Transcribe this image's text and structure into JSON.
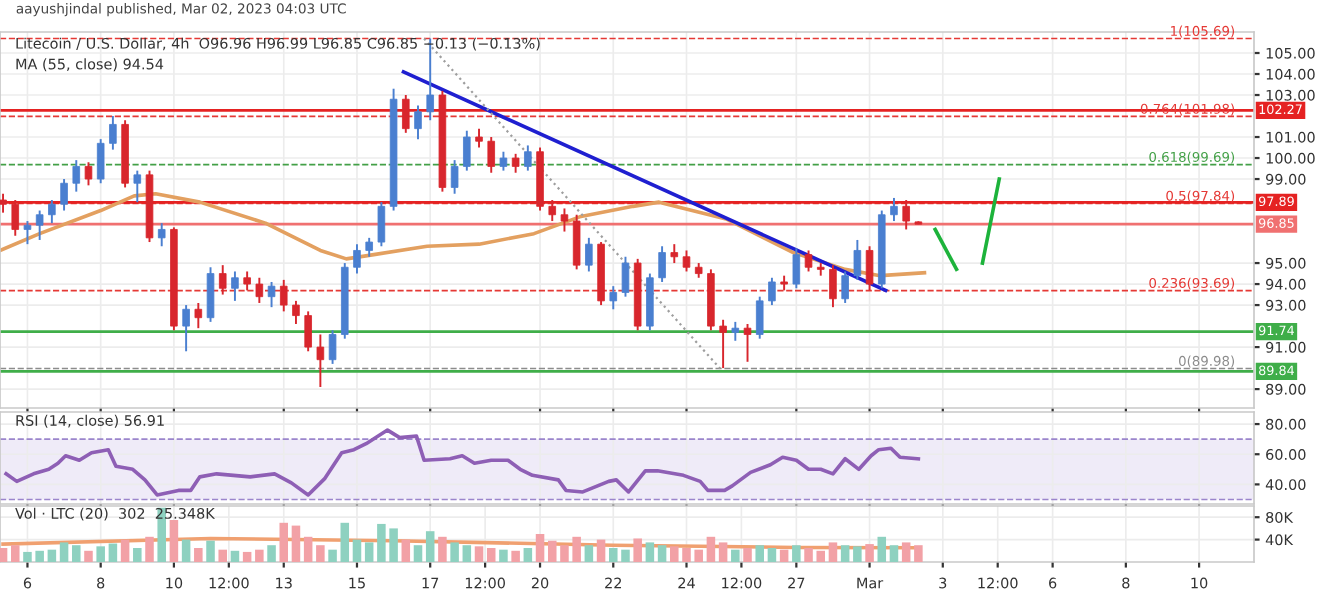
{
  "chart_data": [
    {
      "type": "candlestick",
      "title": "Litecoin / U.S. Dollar, 4h  O96.96 H96.99 L96.85 C96.85 −0.13 (−0.13%)",
      "subtitle": "MA (55, close) 94.54",
      "annotations": [
        "aayushjindal published, Mar 02, 2023 04:03 UTC"
      ],
      "x": [
        "2023-02-05T08:00",
        "2023-02-05T16:00",
        "2023-02-06T00:00",
        "2023-02-06T08:00",
        "2023-02-06T16:00",
        "2023-02-07T00:00",
        "2023-02-07T08:00",
        "2023-02-07T16:00",
        "2023-02-08T00:00",
        "2023-02-08T08:00",
        "2023-02-08T16:00",
        "2023-02-09T00:00",
        "2023-02-09T08:00",
        "2023-02-09T16:00",
        "2023-02-10T00:00",
        "2023-02-10T08:00",
        "2023-02-10T16:00",
        "2023-02-11T00:00",
        "2023-02-11T08:00",
        "2023-02-11T16:00",
        "2023-02-12T00:00",
        "2023-02-12T08:00",
        "2023-02-12T16:00",
        "2023-02-13T00:00",
        "2023-02-13T08:00",
        "2023-02-13T16:00",
        "2023-02-14T00:00",
        "2023-02-14T08:00",
        "2023-02-14T16:00",
        "2023-02-15T00:00",
        "2023-02-15T08:00",
        "2023-02-15T16:00",
        "2023-02-16T00:00",
        "2023-02-16T08:00",
        "2023-02-16T16:00",
        "2023-02-17T00:00",
        "2023-02-17T08:00",
        "2023-02-17T16:00",
        "2023-02-18T00:00",
        "2023-02-18T08:00",
        "2023-02-18T16:00",
        "2023-02-19T00:00",
        "2023-02-19T08:00",
        "2023-02-19T16:00",
        "2023-02-20T00:00",
        "2023-02-20T08:00",
        "2023-02-20T16:00",
        "2023-02-21T00:00",
        "2023-02-21T08:00",
        "2023-02-21T16:00",
        "2023-02-22T00:00",
        "2023-02-22T08:00",
        "2023-02-22T16:00",
        "2023-02-23T00:00",
        "2023-02-23T08:00",
        "2023-02-23T16:00",
        "2023-02-24T00:00",
        "2023-02-24T08:00",
        "2023-02-24T16:00",
        "2023-02-25T00:00",
        "2023-02-25T08:00",
        "2023-02-25T16:00",
        "2023-02-26T00:00",
        "2023-02-26T08:00",
        "2023-02-26T16:00",
        "2023-02-27T00:00",
        "2023-02-27T08:00",
        "2023-02-27T16:00",
        "2023-02-28T00:00",
        "2023-02-28T08:00",
        "2023-02-28T16:00",
        "2023-03-01T00:00",
        "2023-03-01T08:00",
        "2023-03-01T16:00",
        "2023-03-02T00:00",
        "2023-03-02T08:00"
      ],
      "ohlc": [
        [
          98.0,
          98.3,
          97.4,
          97.8
        ],
        [
          97.8,
          98.0,
          96.3,
          96.6
        ],
        [
          96.6,
          97.0,
          95.9,
          96.8
        ],
        [
          96.8,
          97.5,
          96.1,
          97.3
        ],
        [
          97.3,
          98.0,
          96.9,
          97.8
        ],
        [
          97.8,
          99.0,
          97.5,
          98.8
        ],
        [
          98.8,
          99.9,
          98.4,
          99.6
        ],
        [
          99.6,
          99.8,
          98.7,
          99.0
        ],
        [
          99.0,
          100.9,
          98.8,
          100.7
        ],
        [
          100.7,
          102.0,
          100.4,
          101.6
        ],
        [
          101.6,
          101.8,
          98.6,
          98.8
        ],
        [
          98.8,
          99.4,
          97.9,
          99.2
        ],
        [
          99.2,
          99.4,
          96.0,
          96.2
        ],
        [
          96.2,
          96.9,
          95.8,
          96.6
        ],
        [
          96.6,
          96.7,
          91.8,
          92.0
        ],
        [
          92.0,
          93.0,
          90.8,
          92.8
        ],
        [
          92.8,
          93.1,
          91.9,
          92.4
        ],
        [
          92.4,
          94.8,
          92.2,
          94.5
        ],
        [
          94.5,
          94.9,
          93.5,
          93.8
        ],
        [
          93.8,
          94.6,
          93.2,
          94.3
        ],
        [
          94.3,
          94.6,
          93.7,
          94.0
        ],
        [
          94.0,
          94.3,
          93.1,
          93.4
        ],
        [
          93.4,
          94.1,
          92.9,
          93.9
        ],
        [
          93.9,
          94.2,
          92.7,
          93.0
        ],
        [
          93.0,
          93.2,
          92.1,
          92.5
        ],
        [
          92.5,
          92.7,
          90.8,
          91.0
        ],
        [
          91.0,
          91.6,
          89.1,
          90.4
        ],
        [
          90.4,
          91.8,
          90.2,
          91.6
        ],
        [
          91.6,
          95.0,
          91.4,
          94.8
        ],
        [
          94.8,
          95.9,
          94.5,
          95.6
        ],
        [
          95.6,
          96.2,
          95.3,
          96.0
        ],
        [
          96.0,
          97.9,
          95.8,
          97.7
        ],
        [
          97.7,
          103.3,
          97.5,
          102.8
        ],
        [
          102.8,
          103.0,
          101.2,
          101.4
        ],
        [
          101.4,
          102.5,
          100.9,
          102.2
        ],
        [
          102.2,
          105.69,
          101.8,
          103.0
        ],
        [
          103.0,
          103.2,
          98.4,
          98.6
        ],
        [
          98.6,
          99.9,
          98.3,
          99.6
        ],
        [
          99.6,
          101.3,
          99.4,
          101.0
        ],
        [
          101.0,
          101.4,
          100.5,
          100.8
        ],
        [
          100.8,
          101.0,
          99.3,
          99.6
        ],
        [
          99.6,
          100.3,
          99.4,
          100.0
        ],
        [
          100.0,
          100.2,
          99.3,
          99.6
        ],
        [
          99.6,
          100.6,
          99.4,
          100.3
        ],
        [
          100.3,
          100.5,
          97.5,
          97.7
        ],
        [
          97.7,
          98.0,
          97.0,
          97.3
        ],
        [
          97.3,
          97.6,
          96.5,
          97.0
        ],
        [
          97.0,
          97.3,
          94.7,
          94.9
        ],
        [
          94.9,
          96.2,
          94.6,
          95.9
        ],
        [
          95.9,
          96.0,
          93.0,
          93.2
        ],
        [
          93.2,
          93.9,
          92.8,
          93.6
        ],
        [
          93.6,
          95.3,
          93.4,
          95.0
        ],
        [
          95.0,
          95.2,
          91.8,
          92.0
        ],
        [
          92.0,
          94.5,
          91.8,
          94.3
        ],
        [
          94.3,
          95.8,
          94.1,
          95.5
        ],
        [
          95.5,
          95.9,
          95.0,
          95.3
        ],
        [
          95.3,
          95.6,
          94.6,
          94.8
        ],
        [
          94.8,
          95.0,
          94.3,
          94.5
        ],
        [
          94.5,
          94.7,
          91.8,
          92.0
        ],
        [
          92.0,
          92.3,
          90.0,
          91.7
        ],
        [
          91.7,
          92.2,
          91.3,
          91.9
        ],
        [
          91.9,
          92.1,
          90.3,
          91.6
        ],
        [
          91.6,
          93.4,
          91.4,
          93.2
        ],
        [
          93.2,
          94.3,
          93.0,
          94.1
        ],
        [
          94.1,
          94.4,
          93.7,
          94.0
        ],
        [
          94.0,
          95.7,
          93.8,
          95.4
        ],
        [
          95.4,
          95.6,
          94.6,
          94.8
        ],
        [
          94.8,
          95.0,
          94.4,
          94.7
        ],
        [
          94.7,
          94.9,
          92.9,
          93.3
        ],
        [
          93.3,
          94.6,
          93.1,
          94.4
        ],
        [
          94.4,
          96.1,
          94.2,
          95.6
        ],
        [
          95.6,
          95.8,
          93.7,
          94.0
        ],
        [
          94.0,
          97.5,
          93.8,
          97.3
        ],
        [
          97.3,
          98.1,
          97.0,
          97.7
        ],
        [
          97.7,
          98.0,
          96.6,
          97.0
        ],
        [
          96.96,
          96.99,
          96.85,
          96.85
        ]
      ],
      "colors": [
        "#d8262d",
        "#d8262d",
        "#4a7fd0",
        "#4a7fd0",
        "#4a7fd0",
        "#4a7fd0",
        "#4a7fd0",
        "#d8262d",
        "#4a7fd0",
        "#4a7fd0",
        "#d8262d",
        "#4a7fd0",
        "#d8262d",
        "#4a7fd0",
        "#d8262d",
        "#4a7fd0",
        "#d8262d",
        "#4a7fd0",
        "#d8262d",
        "#4a7fd0",
        "#d8262d",
        "#d8262d",
        "#4a7fd0",
        "#d8262d",
        "#d8262d",
        "#d8262d",
        "#d8262d",
        "#4a7fd0",
        "#4a7fd0",
        "#4a7fd0",
        "#4a7fd0",
        "#4a7fd0",
        "#4a7fd0",
        "#d8262d",
        "#4a7fd0",
        "#4a7fd0",
        "#d8262d",
        "#4a7fd0",
        "#4a7fd0",
        "#d8262d",
        "#d8262d",
        "#4a7fd0",
        "#d8262d",
        "#4a7fd0",
        "#d8262d",
        "#d8262d",
        "#d8262d",
        "#d8262d",
        "#4a7fd0",
        "#d8262d",
        "#4a7fd0",
        "#4a7fd0",
        "#d8262d",
        "#4a7fd0",
        "#4a7fd0",
        "#d8262d",
        "#d8262d",
        "#d8262d",
        "#d8262d",
        "#d8262d",
        "#4a7fd0",
        "#d8262d",
        "#4a7fd0",
        "#4a7fd0",
        "#d8262d",
        "#4a7fd0",
        "#d8262d",
        "#d8262d",
        "#d8262d",
        "#4a7fd0",
        "#4a7fd0",
        "#d8262d",
        "#4a7fd0",
        "#4a7fd0",
        "#d8262d",
        "#d8262d"
      ],
      "series": [
        {
          "type": "line",
          "color": "#e3a060",
          "line_style": "solid",
          "x": [
            "2023-02-05T06:00",
            "2023-02-06T08:00",
            "2023-02-08T00:00",
            "2023-02-08T22:00",
            "2023-02-09T12:00",
            "2023-02-10T17:00",
            "2023-02-12T12:00",
            "2023-02-14T00:00",
            "2023-02-14T17:00",
            "2023-02-15T11:00",
            "2023-02-16T22:00",
            "2023-02-18T08:00",
            "2023-02-19T20:00",
            "2023-02-21T02:00",
            "2023-02-22T13:00",
            "2023-02-23T06:00",
            "2023-02-25T02:00",
            "2023-02-26T22:00",
            "2023-02-28T08:00",
            "2023-03-01T07:00",
            "2023-03-02T12:00"
          ],
          "values": [
            95.6,
            96.4,
            97.5,
            98.2,
            98.3,
            97.9,
            96.9,
            95.6,
            95.2,
            95.4,
            95.8,
            95.9,
            96.4,
            97.2,
            97.7,
            97.9,
            97.1,
            95.5,
            94.7,
            94.4,
            94.54
          ]
        },
        {
          "type": "line",
          "color": "#1f1fd0",
          "line_style": "solid",
          "x": [
            "2023-02-16T06:30",
            "2023-03-01T10:30"
          ],
          "values": [
            104.1,
            93.7
          ]
        },
        {
          "type": "line",
          "color": "#9e9e9e",
          "line_style": "dotted",
          "x": [
            "2023-02-16T20:00",
            "2023-02-24T22:00"
          ],
          "values": [
            105.69,
            89.98
          ]
        },
        {
          "type": "line",
          "color": "#1db33b",
          "line_style": "solid",
          "x": [
            "2023-03-02T19:00",
            "2023-03-03T09:00"
          ],
          "values": [
            96.6,
            94.7
          ]
        },
        {
          "type": "line",
          "color": "#1db33b",
          "line_style": "solid",
          "x": [
            "2023-03-04T02:00",
            "2023-03-04T13:00"
          ],
          "values": [
            95.0,
            99.0
          ]
        }
      ],
      "ref_lines": [
        {
          "axis": "y",
          "value": 105.69,
          "label": "1(105.69)",
          "color": "#e53935",
          "line_style": "dashed"
        },
        {
          "axis": "y",
          "value": 101.98,
          "label": "0.764(101.98)",
          "color": "#e53935",
          "line_style": "dashed"
        },
        {
          "axis": "y",
          "value": 99.69,
          "label": "0.618(99.69)",
          "color": "#43a047",
          "line_style": "dashed"
        },
        {
          "axis": "y",
          "value": 97.84,
          "label": "0.5(97.84)",
          "color": "#e53935",
          "line_style": "dashed"
        },
        {
          "axis": "y",
          "value": 93.69,
          "label": "0.236(93.69)",
          "color": "#e53935",
          "line_style": "dashed"
        },
        {
          "axis": "y",
          "value": 89.98,
          "label": "0(89.98)",
          "color": "#8c8c8c",
          "line_style": "dashed"
        },
        {
          "axis": "y",
          "value": 102.27,
          "label": "102.27",
          "color": "#e52222",
          "line_style": "solid"
        },
        {
          "axis": "y",
          "value": 97.89,
          "label": "97.89",
          "color": "#e52222",
          "line_style": "solid"
        },
        {
          "axis": "y",
          "value": 96.85,
          "label": "96.85",
          "color": "#f07070",
          "line_style": "solid"
        },
        {
          "axis": "y",
          "value": 91.74,
          "label": "91.74",
          "color": "#3fae49",
          "line_style": "solid"
        },
        {
          "axis": "y",
          "value": 89.84,
          "label": "89.84",
          "color": "#3fae49",
          "line_style": "solid"
        }
      ],
      "xlim": [
        "2023-02-05T06:00",
        "2023-03-11T12:00"
      ],
      "ylim": [
        88.1,
        106
      ],
      "yticks": [
        {
          "value": 89,
          "label": "89.00"
        },
        {
          "value": 91,
          "label": "91.00"
        },
        {
          "value": 93,
          "label": "93.00"
        },
        {
          "value": 94,
          "label": "94.00"
        },
        {
          "value": 95,
          "label": "95.00"
        },
        {
          "value": 99,
          "label": "99.00"
        },
        {
          "value": 100,
          "label": "100.00"
        },
        {
          "value": 101,
          "label": "101.00"
        },
        {
          "value": 103,
          "label": "103.00"
        },
        {
          "value": 104,
          "label": "104.00"
        },
        {
          "value": 105,
          "label": "105.00"
        }
      ],
      "grid": true,
      "tick_labels": "y"
    },
    {
      "type": "line",
      "title": "RSI (14, close) 56.91",
      "series": [
        {
          "color": "#8e5fb5",
          "x": [
            "2023-02-05T10:00",
            "2023-02-05T17:00",
            "2023-02-06T04:00",
            "2023-02-06T14:00",
            "2023-02-06T20:00",
            "2023-02-07T01:00",
            "2023-02-07T10:00",
            "2023-02-07T18:00",
            "2023-02-08T05:00",
            "2023-02-08T10:00",
            "2023-02-08T21:00",
            "2023-02-09T05:00",
            "2023-02-09T13:00",
            "2023-02-10T03:00",
            "2023-02-10T11:00",
            "2023-02-10T17:00",
            "2023-02-11T04:00",
            "2023-02-12T02:00",
            "2023-02-12T18:00",
            "2023-02-13T05:00",
            "2023-02-13T16:00",
            "2023-02-14T03:00",
            "2023-02-14T14:00",
            "2023-02-14T22:00",
            "2023-02-15T06:00",
            "2023-02-15T20:00",
            "2023-02-16T04:00",
            "2023-02-16T15:00",
            "2023-02-16T20:00",
            "2023-02-17T13:00",
            "2023-02-17T21:00",
            "2023-02-18T05:00",
            "2023-02-18T16:00",
            "2023-02-19T03:00",
            "2023-02-19T11:00",
            "2023-02-19T19:00",
            "2023-02-20T12:00",
            "2023-02-20T17:00",
            "2023-02-21T04:00",
            "2023-02-21T21:00",
            "2023-02-22T02:00",
            "2023-02-22T10:00",
            "2023-02-22T21:00",
            "2023-02-23T05:00",
            "2023-02-23T22:00",
            "2023-02-24T09:00",
            "2023-02-24T14:00",
            "2023-02-25T01:00",
            "2023-02-25T06:00",
            "2023-02-25T18:00",
            "2023-02-26T07:00",
            "2023-02-26T15:00",
            "2023-02-27T00:00",
            "2023-02-27T08:00",
            "2023-02-27T16:00",
            "2023-02-28T00:00",
            "2023-02-28T08:00",
            "2023-02-28T17:00",
            "2023-03-01T01:00",
            "2023-03-01T06:00",
            "2023-03-01T14:00",
            "2023-03-01T20:00",
            "2023-03-02T08:00"
          ],
          "values": [
            47,
            42,
            47,
            50,
            54,
            59,
            56,
            61,
            63,
            52,
            50,
            43,
            33,
            36,
            36,
            45,
            47,
            45,
            47,
            41,
            33,
            44,
            61,
            63,
            67,
            76,
            71,
            72,
            56,
            57,
            59,
            54,
            56,
            56,
            50,
            46,
            43,
            36,
            35,
            42,
            43,
            35,
            49,
            49,
            46,
            42,
            36,
            36,
            39,
            48,
            53,
            58,
            56,
            50,
            50,
            47,
            57,
            50,
            59,
            63,
            64,
            58,
            56.91
          ]
        }
      ],
      "bands": [
        {
          "axis": "y",
          "from": 30,
          "to": 70,
          "color": "#7e57c2"
        }
      ],
      "ref_lines": [
        {
          "axis": "y",
          "value": 70,
          "color": "#9b85cc",
          "line_style": "dashed"
        },
        {
          "axis": "y",
          "value": 30,
          "color": "#9b85cc",
          "line_style": "dashed"
        }
      ],
      "xlim": [
        "2023-02-05T06:00",
        "2023-03-11T12:00"
      ],
      "ylim": [
        27,
        88
      ],
      "yticks": [
        {
          "value": 40,
          "label": "40.00"
        },
        {
          "value": 60,
          "label": "60.00"
        },
        {
          "value": 80,
          "label": "80.00"
        }
      ],
      "grid": true,
      "tick_labels": "y"
    },
    {
      "type": "bar",
      "title": "Vol · LTC (20)  302  25.348K",
      "x": [
        "2023-02-05T08:00",
        "2023-02-05T16:00",
        "2023-02-06T00:00",
        "2023-02-06T08:00",
        "2023-02-06T16:00",
        "2023-02-07T00:00",
        "2023-02-07T08:00",
        "2023-02-07T16:00",
        "2023-02-08T00:00",
        "2023-02-08T08:00",
        "2023-02-08T16:00",
        "2023-02-09T00:00",
        "2023-02-09T08:00",
        "2023-02-09T16:00",
        "2023-02-10T00:00",
        "2023-02-10T08:00",
        "2023-02-10T16:00",
        "2023-02-11T00:00",
        "2023-02-11T08:00",
        "2023-02-11T16:00",
        "2023-02-12T00:00",
        "2023-02-12T08:00",
        "2023-02-12T16:00",
        "2023-02-13T00:00",
        "2023-02-13T08:00",
        "2023-02-13T16:00",
        "2023-02-14T00:00",
        "2023-02-14T08:00",
        "2023-02-14T16:00",
        "2023-02-15T00:00",
        "2023-02-15T08:00",
        "2023-02-15T16:00",
        "2023-02-16T00:00",
        "2023-02-16T08:00",
        "2023-02-16T16:00",
        "2023-02-17T00:00",
        "2023-02-17T08:00",
        "2023-02-17T16:00",
        "2023-02-18T00:00",
        "2023-02-18T08:00",
        "2023-02-18T16:00",
        "2023-02-19T00:00",
        "2023-02-19T08:00",
        "2023-02-19T16:00",
        "2023-02-20T00:00",
        "2023-02-20T08:00",
        "2023-02-20T16:00",
        "2023-02-21T00:00",
        "2023-02-21T08:00",
        "2023-02-21T16:00",
        "2023-02-22T00:00",
        "2023-02-22T08:00",
        "2023-02-22T16:00",
        "2023-02-23T00:00",
        "2023-02-23T08:00",
        "2023-02-23T16:00",
        "2023-02-24T00:00",
        "2023-02-24T08:00",
        "2023-02-24T16:00",
        "2023-02-25T00:00",
        "2023-02-25T08:00",
        "2023-02-25T16:00",
        "2023-02-26T00:00",
        "2023-02-26T08:00",
        "2023-02-26T16:00",
        "2023-02-27T00:00",
        "2023-02-27T08:00",
        "2023-02-27T16:00",
        "2023-02-28T00:00",
        "2023-02-28T08:00",
        "2023-02-28T16:00",
        "2023-03-01T00:00",
        "2023-03-01T08:00",
        "2023-03-01T16:00",
        "2023-03-02T00:00",
        "2023-03-02T08:00"
      ],
      "values": [
        25000,
        30000,
        18000,
        20000,
        22000,
        35000,
        30000,
        20000,
        28000,
        33000,
        40000,
        25000,
        45000,
        97000,
        75000,
        40000,
        25000,
        38000,
        22000,
        20000,
        18000,
        22000,
        30000,
        70000,
        65000,
        45000,
        30000,
        22000,
        70000,
        40000,
        35000,
        68000,
        60000,
        40000,
        30000,
        55000,
        45000,
        35000,
        30000,
        28000,
        25000,
        22000,
        20000,
        25000,
        50000,
        38000,
        30000,
        45000,
        30000,
        40000,
        25000,
        22000,
        42000,
        35000,
        30000,
        28000,
        25000,
        22000,
        45000,
        35000,
        22000,
        25000,
        30000,
        25000,
        22000,
        30000,
        25000,
        20000,
        35000,
        30000,
        28000,
        32000,
        45000,
        30000,
        35000,
        30000
      ],
      "colors": [
        "#f2a1a6",
        "#f2a1a6",
        "#8ed1c0",
        "#8ed1c0",
        "#8ed1c0",
        "#8ed1c0",
        "#8ed1c0",
        "#f2a1a6",
        "#8ed1c0",
        "#8ed1c0",
        "#f2a1a6",
        "#8ed1c0",
        "#f2a1a6",
        "#8ed1c0",
        "#f2a1a6",
        "#8ed1c0",
        "#f2a1a6",
        "#8ed1c0",
        "#f2a1a6",
        "#8ed1c0",
        "#f2a1a6",
        "#f2a1a6",
        "#8ed1c0",
        "#f2a1a6",
        "#f2a1a6",
        "#f2a1a6",
        "#f2a1a6",
        "#8ed1c0",
        "#8ed1c0",
        "#8ed1c0",
        "#8ed1c0",
        "#8ed1c0",
        "#8ed1c0",
        "#f2a1a6",
        "#8ed1c0",
        "#8ed1c0",
        "#f2a1a6",
        "#8ed1c0",
        "#8ed1c0",
        "#f2a1a6",
        "#f2a1a6",
        "#8ed1c0",
        "#f2a1a6",
        "#8ed1c0",
        "#f2a1a6",
        "#f2a1a6",
        "#f2a1a6",
        "#f2a1a6",
        "#8ed1c0",
        "#f2a1a6",
        "#8ed1c0",
        "#8ed1c0",
        "#f2a1a6",
        "#8ed1c0",
        "#8ed1c0",
        "#f2a1a6",
        "#f2a1a6",
        "#f2a1a6",
        "#f2a1a6",
        "#f2a1a6",
        "#8ed1c0",
        "#f2a1a6",
        "#8ed1c0",
        "#8ed1c0",
        "#f2a1a6",
        "#8ed1c0",
        "#f2a1a6",
        "#f2a1a6",
        "#f2a1a6",
        "#8ed1c0",
        "#8ed1c0",
        "#f2a1a6",
        "#8ed1c0",
        "#8ed1c0",
        "#f2a1a6",
        "#f2a1a6"
      ],
      "series": [
        {
          "type": "line",
          "color": "#f0a070",
          "x": [
            "2023-02-05T08:00",
            "2023-02-11T00:00",
            "2023-02-16T00:00",
            "2023-02-22T00:00",
            "2023-02-27T00:00",
            "2023-03-02T08:00"
          ],
          "values": [
            32000,
            42000,
            38000,
            30000,
            26000,
            25348
          ]
        }
      ],
      "xlim": [
        "2023-02-05T06:00",
        "2023-03-11T12:00"
      ],
      "ylim": [
        0,
        100000
      ],
      "xticks": [
        {
          "value": "2023-02-06",
          "label": "6"
        },
        {
          "value": "2023-02-08",
          "label": "8"
        },
        {
          "value": "2023-02-10",
          "label": "10"
        },
        {
          "value": "2023-02-11T12:00",
          "label": "12:00"
        },
        {
          "value": "2023-02-13",
          "label": "13"
        },
        {
          "value": "2023-02-15",
          "label": "15"
        },
        {
          "value": "2023-02-17",
          "label": "17"
        },
        {
          "value": "2023-02-18T12:00",
          "label": "12:00"
        },
        {
          "value": "2023-02-20",
          "label": "20"
        },
        {
          "value": "2023-02-22",
          "label": "22"
        },
        {
          "value": "2023-02-24",
          "label": "24"
        },
        {
          "value": "2023-02-25T12:00",
          "label": "12:00"
        },
        {
          "value": "2023-02-27",
          "label": "27"
        },
        {
          "value": "2023-03-01",
          "label": "Mar"
        },
        {
          "value": "2023-03-03",
          "label": "3"
        },
        {
          "value": "2023-03-04T12:00",
          "label": "12:00"
        },
        {
          "value": "2023-03-06",
          "label": "6"
        },
        {
          "value": "2023-03-08",
          "label": "8"
        },
        {
          "value": "2023-03-10",
          "label": "10"
        }
      ],
      "yticks": [
        {
          "value": 40000,
          "label": "40K"
        },
        {
          "value": 80000,
          "label": "80K"
        }
      ],
      "grid": true
    }
  ]
}
